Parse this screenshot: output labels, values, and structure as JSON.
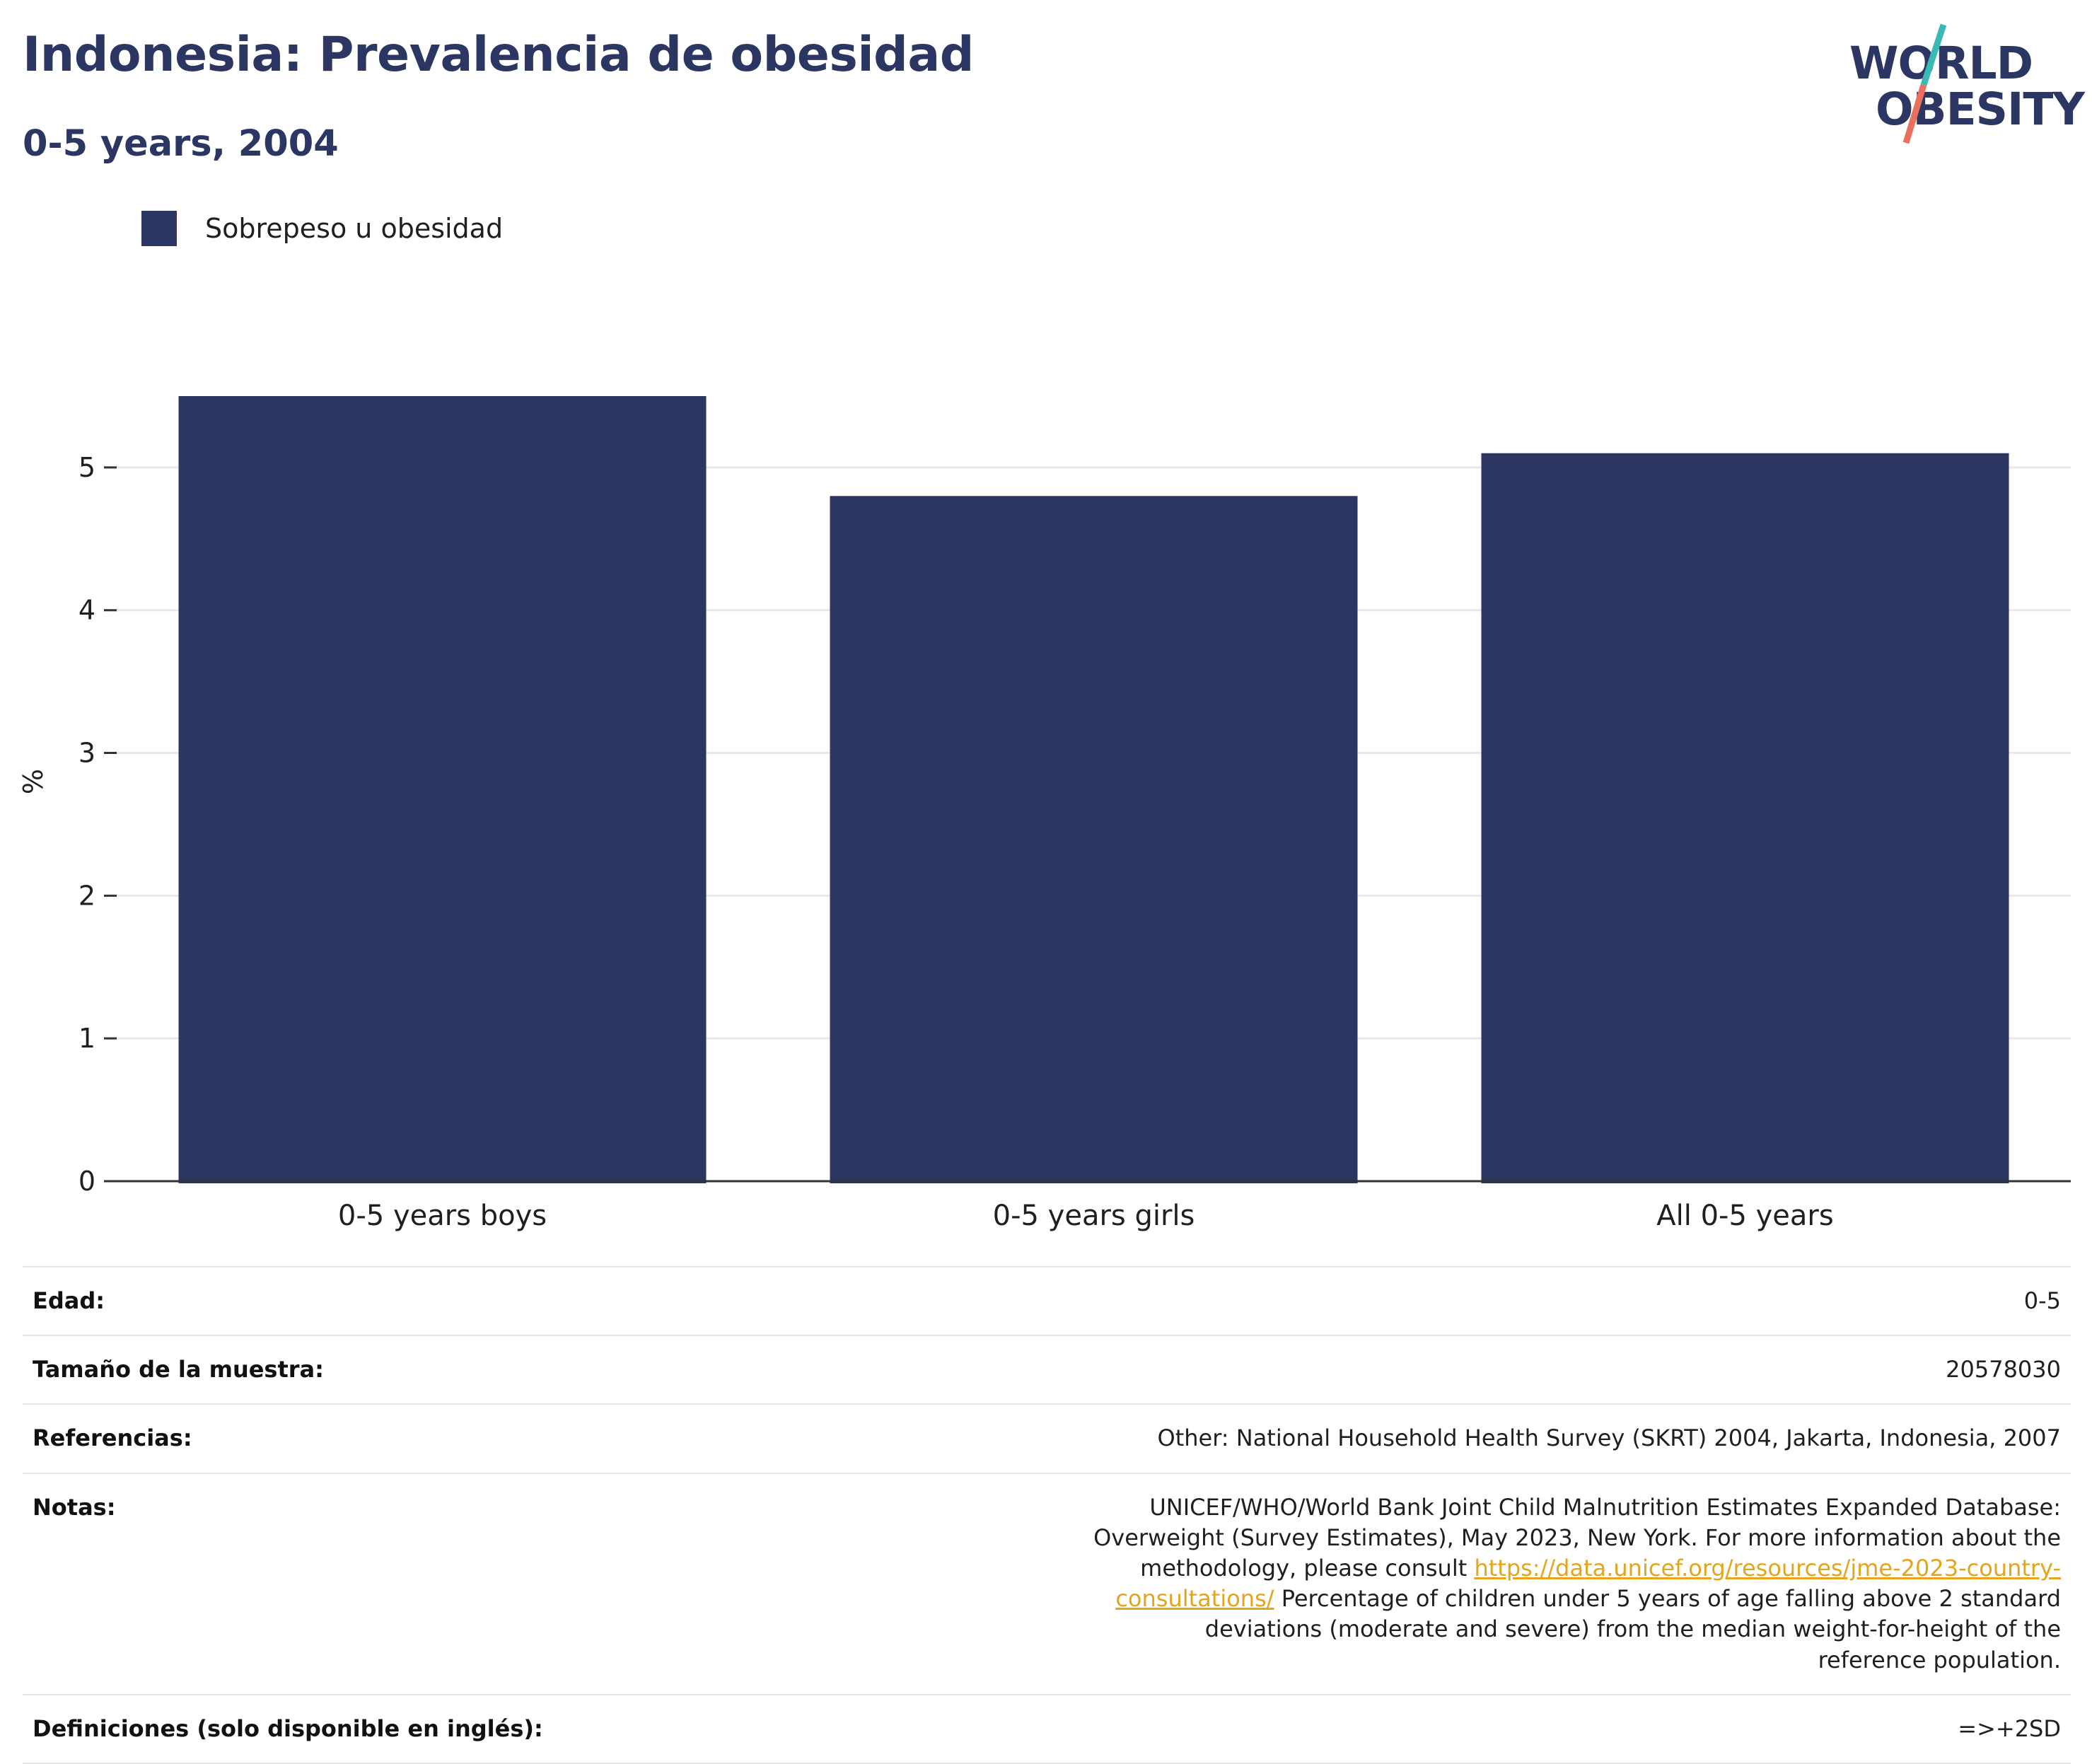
{
  "header": {
    "title": "Indonesia: Prevalencia de obesidad",
    "subtitle": "0-5 years, 2004"
  },
  "logo": {
    "line1": "WORLD",
    "line2": "OBESITY",
    "colors": {
      "slash_top": "#3bb9b5",
      "slash_bottom": "#e8705c",
      "text": "#2b3663"
    }
  },
  "legend": {
    "items": [
      {
        "label": "Sobrepeso u obesidad",
        "color": "#2b3663"
      }
    ]
  },
  "chart_data": {
    "type": "bar",
    "categories": [
      "0-5 years boys",
      "0-5 years girls",
      "All 0-5 years"
    ],
    "series": [
      {
        "name": "Sobrepeso u obesidad",
        "values": [
          5.5,
          4.8,
          5.1
        ],
        "color": "#2b3663"
      }
    ],
    "ylabel": "%",
    "xlabel": "",
    "ylim": [
      0,
      5.5
    ],
    "yticks": [
      0,
      1,
      2,
      3,
      4,
      5
    ],
    "grid": true,
    "legend_position": "top-left"
  },
  "info": {
    "rows": [
      {
        "label": "Edad:",
        "value": "0-5"
      },
      {
        "label": "Tamaño de la muestra:",
        "value": "20578030"
      },
      {
        "label": "Referencias:",
        "value": "Other: National Household Health Survey (SKRT) 2004, Jakarta, Indonesia, 2007"
      },
      {
        "label": "Notas:",
        "value_before": "UNICEF/WHO/World Bank Joint Child Malnutrition Estimates Expanded Database: Overweight (Survey Estimates), May 2023, New York. For more information about the methodology, please consult ",
        "link": "https://data.unicef.org/resources/jme-2023-country-consultations/",
        "value_after": " Percentage of children under 5 years of age falling above 2 standard deviations (moderate and severe) from the median weight-for-height of the reference population."
      },
      {
        "label": "Definiciones (solo disponible en inglés):",
        "value": "=>+2SD"
      }
    ]
  }
}
